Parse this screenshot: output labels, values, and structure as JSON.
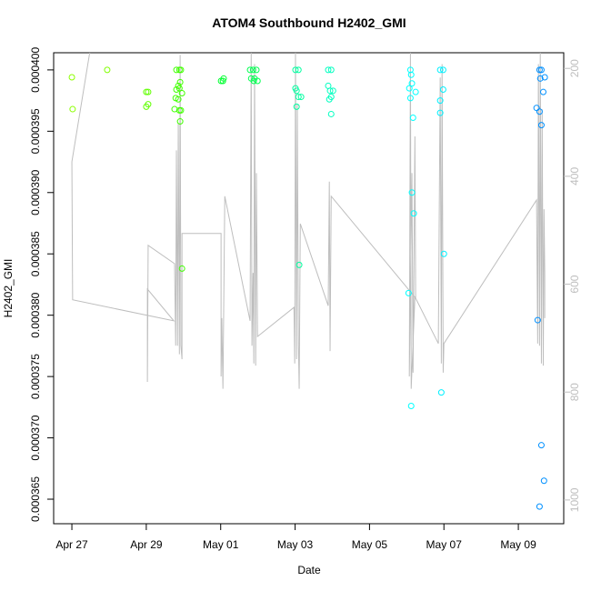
{
  "chart_data": {
    "type": "scatter",
    "title": "ATOM4 Southbound H2402_GMI",
    "x_label": "Date",
    "y_label": "H2402_GMI",
    "xlim": [
      -0.49,
      13.22
    ],
    "xticks": [
      {
        "value": 0,
        "label": "Apr 27"
      },
      {
        "value": 2,
        "label": "Apr 29"
      },
      {
        "value": 4,
        "label": "May 01"
      },
      {
        "value": 6,
        "label": "May 03"
      },
      {
        "value": 8,
        "label": "May 05"
      },
      {
        "value": 10,
        "label": "May 07"
      },
      {
        "value": 12,
        "label": "May 09"
      }
    ],
    "ylim": [
      0.000363,
      0.0004014
    ],
    "yticks": [
      {
        "value": 0.000365,
        "label": "0.000365"
      },
      {
        "value": 0.00037,
        "label": "0.000370"
      },
      {
        "value": 0.000375,
        "label": "0.000375"
      },
      {
        "value": 0.00038,
        "label": "0.000380"
      },
      {
        "value": 0.000385,
        "label": "0.000385"
      },
      {
        "value": 0.00039,
        "label": "0.000390"
      },
      {
        "value": 0.000395,
        "label": "0.000395"
      },
      {
        "value": 0.0004,
        "label": "0.000400"
      }
    ],
    "y2lim": [
      1044,
      171
    ],
    "y2ticks": [
      200,
      400,
      600,
      800,
      1000
    ],
    "y2_color": "#bebebe",
    "series": [
      {
        "x": [
          0,
          0.02,
          0.95,
          2.0,
          2.05,
          2.0,
          2.05,
          2.81,
          2.89,
          2.93,
          2.86,
          2.81,
          2.89,
          2.79,
          2.86,
          2.96,
          2.91,
          2.76,
          2.89,
          2.93,
          2.91,
          2.96,
          4.01,
          4.08,
          4.06,
          4.79,
          4.87,
          4.96,
          4.82,
          4.91,
          4.99,
          4.89,
          6.01,
          6.09,
          6.01,
          6.04,
          6.09,
          6.16,
          6.04,
          6.11,
          6.89,
          6.97,
          6.89,
          6.94,
          7.02,
          6.97,
          6.92,
          6.97,
          9.1,
          9.12,
          9.07,
          9.14,
          9.24,
          9.1,
          9.17,
          9.05,
          9.14,
          9.19,
          9.12,
          9.9,
          9.98,
          9.9,
          9.98,
          9.9,
          10.0,
          9.93,
          12.57,
          12.62,
          12.59,
          12.71,
          12.49,
          12.57,
          12.67,
          12.62,
          12.52,
          12.62,
          12.69,
          12.57
        ],
        "values": [
          0.0003994,
          0.0003968,
          0.0004,
          0.0003982,
          0.0003982,
          0.000397,
          0.0003972,
          0.0004,
          0.0004,
          0.0004,
          0.0003987,
          0.0003984,
          0.0003985,
          0.0003977,
          0.0003976,
          0.0003981,
          0.000399,
          0.0003968,
          0.0003967,
          0.0003967,
          0.0003958,
          0.0003838,
          0.0003991,
          0.0003993,
          0.0003991,
          0.0004,
          0.0004,
          0.0004,
          0.0003993,
          0.0003993,
          0.0003991,
          0.0003991,
          0.0004,
          0.0004,
          0.0003985,
          0.0003983,
          0.0003978,
          0.0003978,
          0.000397,
          0.0003841,
          0.0004,
          0.0004,
          0.0003987,
          0.0003983,
          0.0003983,
          0.0003978,
          0.0003976,
          0.0003964,
          0.0004,
          0.0003996,
          0.0003985,
          0.0003989,
          0.0003982,
          0.0003977,
          0.0003961,
          0.0003818,
          0.00039,
          0.0003883,
          0.0003726,
          0.0004,
          0.0004,
          0.0003975,
          0.0003984,
          0.0003965,
          0.000385,
          0.0003737,
          0.0004,
          0.0004,
          0.0003993,
          0.0003994,
          0.0003969,
          0.0003966,
          0.0003982,
          0.0003955,
          0.0003796,
          0.0003694,
          0.0003665,
          0.0003644
        ],
        "colors": [
          "#8cff00",
          "#8cff00",
          "#80ff00",
          "#60ff00",
          "#60ff00",
          "#60ff00",
          "#60ff00",
          "#40ff00",
          "#40ff00",
          "#40ff00",
          "#40ff00",
          "#40ff00",
          "#40ff00",
          "#40ff00",
          "#40ff00",
          "#40ff00",
          "#40ff00",
          "#40ff00",
          "#40ff00",
          "#40ff00",
          "#40ff00",
          "#40ff00",
          "#00ff30",
          "#00ff30",
          "#00ff30",
          "#00ff50",
          "#00ff50",
          "#00ff50",
          "#00ff50",
          "#00ff50",
          "#00ff50",
          "#00ff50",
          "#00ffa0",
          "#00ffa0",
          "#00ffa0",
          "#00ffa0",
          "#00ffa0",
          "#00ffa0",
          "#00ffa0",
          "#00ffa0",
          "#00ffc0",
          "#00ffc0",
          "#00ffc0",
          "#00ffc0",
          "#00ffc0",
          "#00ffc0",
          "#00ffc0",
          "#00ffc0",
          "#00ffff",
          "#00ffff",
          "#00ffff",
          "#00ffff",
          "#00ffff",
          "#00ffff",
          "#00ffff",
          "#00ffff",
          "#00ffff",
          "#00ffff",
          "#00ffff",
          "#00f0ff",
          "#00f0ff",
          "#00f0ff",
          "#00f0ff",
          "#00f0ff",
          "#00f0ff",
          "#00f0ff",
          "#0090ff",
          "#0090ff",
          "#0090ff",
          "#0090ff",
          "#0090ff",
          "#0090ff",
          "#0090ff",
          "#0090ff",
          "#0090ff",
          "#0090ff",
          "#0090ff",
          "#0090ff"
        ]
      },
      {
        "axis": "y2",
        "color": "#bebebe",
        "x": [
          0.51,
          0,
          0.02,
          2.74,
          2.03,
          2.03,
          2.05,
          2.76,
          2.79,
          2.81,
          2.84,
          2.86,
          2.89,
          2.91,
          2.93,
          2.96,
          2.96,
          4.01,
          4.01,
          4.03,
          4.06,
          4.11,
          4.79,
          4.82,
          4.84,
          4.87,
          4.89,
          4.91,
          4.94,
          4.96,
          4.99,
          5.97,
          5.99,
          6.01,
          6.04,
          6.06,
          6.09,
          6.11,
          6.14,
          6.89,
          6.92,
          6.94,
          6.97,
          9.22,
          9.12,
          9.1,
          9.07,
          9.14,
          9.17,
          9.22,
          9.24,
          9.85,
          9.9,
          9.93,
          9.95,
          9.98,
          10.0,
          12.49,
          12.52,
          12.54,
          12.57,
          12.59,
          12.62,
          12.64,
          12.67,
          12.69,
          12.71,
          12.71
        ],
        "values": [
          158,
          373,
          629,
          668,
          609,
          781,
          528,
          562,
          714,
          352,
          714,
          301,
          730,
          175,
          714,
          739,
          506,
          506,
          771,
          663,
          794,
          437,
          668,
          171,
          714,
          579,
          747,
          192,
          751,
          394,
          697,
          643,
          747,
          171,
          739,
          267,
          714,
          794,
          488,
          640,
          410,
          724,
          437,
          624,
          794,
          171,
          771,
          394,
          764,
          326,
          626,
          710,
          217,
          747,
          192,
          764,
          710,
          444,
          710,
          192,
          714,
          166,
          747,
          276,
          751,
          461,
          579,
          663
        ]
      }
    ]
  }
}
